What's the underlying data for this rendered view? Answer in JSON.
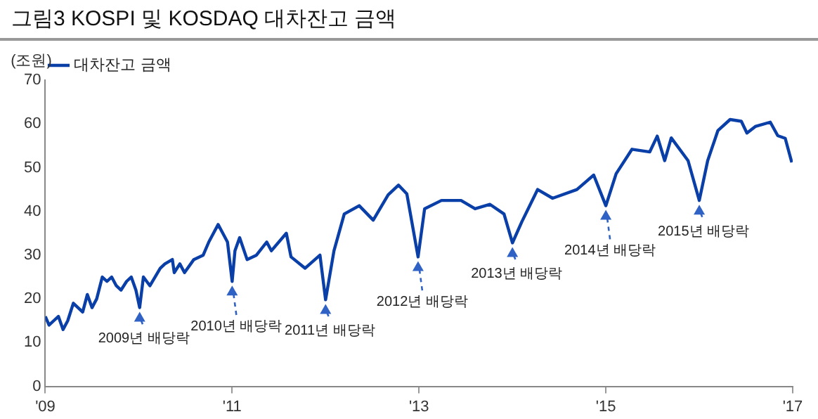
{
  "chart_data": {
    "type": "line",
    "title": "그림3  KOSPI 및 KOSDAQ 대차잔고 금액",
    "ylabel": "(조원)",
    "xlim": [
      2009,
      2017
    ],
    "xticks": [
      {
        "value": 2009,
        "label": "'09"
      },
      {
        "value": 2011,
        "label": "'11"
      },
      {
        "value": 2013,
        "label": "'13"
      },
      {
        "value": 2015,
        "label": "'15"
      },
      {
        "value": 2017,
        "label": "'17"
      }
    ],
    "ylim": [
      0,
      70
    ],
    "yticks": [
      0,
      10,
      20,
      30,
      40,
      50,
      60,
      70
    ],
    "grid": false,
    "legend": "top left",
    "marker": "none",
    "line_style": "solid",
    "series": [
      {
        "name": "대차잔고 금액",
        "color": "#0a3fa8",
        "x": [
          2009.0,
          2009.04,
          2009.09,
          2009.14,
          2009.19,
          2009.24,
          2009.3,
          2009.35,
          2009.4,
          2009.45,
          2009.5,
          2009.55,
          2009.61,
          2009.66,
          2009.71,
          2009.76,
          2009.81,
          2009.87,
          2009.92,
          2009.97,
          2010.01,
          2010.05,
          2010.12,
          2010.23,
          2010.28,
          2010.36,
          2010.38,
          2010.44,
          2010.49,
          2010.59,
          2010.69,
          2010.75,
          2010.8,
          2010.85,
          2010.9,
          2010.95,
          2011.0,
          2011.03,
          2011.08,
          2011.16,
          2011.26,
          2011.37,
          2011.42,
          2011.58,
          2011.63,
          2011.78,
          2011.94,
          2012.0,
          2012.09,
          2012.2,
          2012.36,
          2012.51,
          2012.67,
          2012.78,
          2012.87,
          2012.99,
          2013.06,
          2013.24,
          2013.45,
          2013.6,
          2013.76,
          2013.91,
          2014.0,
          2014.1,
          2014.27,
          2014.43,
          2014.69,
          2014.87,
          2015.0,
          2015.11,
          2015.28,
          2015.47,
          2015.55,
          2015.63,
          2015.7,
          2015.88,
          2016.0,
          2016.09,
          2016.2,
          2016.33,
          2016.45,
          2016.51,
          2016.6,
          2016.76,
          2016.84,
          2016.92,
          2016.99
        ],
        "values": [
          16,
          14,
          15,
          16,
          13,
          15,
          19,
          18,
          17,
          21,
          18,
          20,
          25,
          24,
          25,
          23,
          22,
          24,
          25,
          22,
          18,
          25,
          23,
          27,
          28,
          29,
          26,
          28,
          26,
          29,
          30,
          33,
          35,
          37,
          35,
          33,
          24,
          31,
          34,
          29,
          30,
          33,
          31,
          35,
          29.6,
          27,
          30,
          19.8,
          31,
          39.4,
          41.3,
          38,
          43.8,
          46,
          44,
          29.6,
          40.6,
          42.5,
          42.5,
          40.6,
          41.6,
          39.4,
          32.8,
          37.6,
          45,
          43,
          45,
          48.3,
          41.3,
          48.6,
          54.2,
          53.6,
          57.2,
          51.6,
          56.8,
          51.6,
          42.5,
          51.6,
          58.5,
          61,
          60.6,
          57.9,
          59.4,
          60.4,
          57.3,
          56.7,
          51.2
        ]
      }
    ],
    "annotations": [
      {
        "text": "2009년 배당락",
        "x": 2010.01,
        "y": 18
      },
      {
        "text": "2010년 배당락",
        "x": 2011.0,
        "y": 24
      },
      {
        "text": "2011년 배당락",
        "x": 2012.0,
        "y": 19.8
      },
      {
        "text": "2012년 배당락",
        "x": 2012.99,
        "y": 29.6
      },
      {
        "text": "2013년 배당락",
        "x": 2014.0,
        "y": 32.8
      },
      {
        "text": "2014년 배당락",
        "x": 2015.0,
        "y": 41.3
      },
      {
        "text": "2015년 배당락",
        "x": 2016.0,
        "y": 42.5
      }
    ]
  }
}
